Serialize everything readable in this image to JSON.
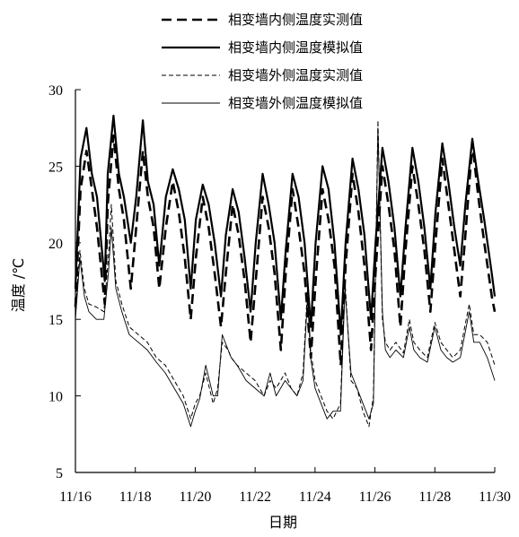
{
  "chart_data": {
    "type": "line",
    "xlabel": "日期",
    "ylabel": "温度 /℃",
    "xlim": [
      0,
      14
    ],
    "ylim": [
      5,
      30
    ],
    "x_ticks": [
      0,
      2,
      4,
      6,
      8,
      10,
      12,
      14
    ],
    "x_tick_labels": [
      "11/16",
      "11/18",
      "11/20",
      "11/22",
      "11/24",
      "11/26",
      "11/28",
      "11/30"
    ],
    "y_ticks": [
      5,
      10,
      15,
      20,
      25,
      30
    ],
    "y_tick_labels": [
      "5",
      "10",
      "15",
      "20",
      "25",
      "30"
    ],
    "grid": false,
    "legend_position": "top",
    "series": [
      {
        "name": "相变墙内侧温度实测值",
        "style": "dashed-thick",
        "x": [
          0,
          0.17,
          0.37,
          0.55,
          0.72,
          0.98,
          1.08,
          1.27,
          1.45,
          1.62,
          1.85,
          2.03,
          2.25,
          2.42,
          2.61,
          2.8,
          3.02,
          3.25,
          3.45,
          3.65,
          3.85,
          4.02,
          4.25,
          4.45,
          4.65,
          4.86,
          5.02,
          5.25,
          5.45,
          5.65,
          5.85,
          6.02,
          6.25,
          6.45,
          6.65,
          6.86,
          7.02,
          7.25,
          7.45,
          7.65,
          7.86,
          8.02,
          8.25,
          8.45,
          8.65,
          8.86,
          9.02,
          9.25,
          9.45,
          9.65,
          9.87,
          10.02,
          10.25,
          10.45,
          10.65,
          10.85,
          11.02,
          11.25,
          11.45,
          11.65,
          11.85,
          12.02,
          12.25,
          12.45,
          12.65,
          12.85,
          13.02,
          13.25,
          13.45,
          13.65,
          13.9,
          14
        ],
        "y": [
          15.8,
          23.5,
          26.0,
          23.5,
          21.0,
          16.0,
          22.5,
          27.0,
          23.5,
          21.5,
          17.0,
          21.0,
          26.0,
          23.0,
          21.0,
          17.0,
          21.0,
          24.0,
          22.0,
          19.0,
          15.0,
          19.0,
          23.0,
          21.0,
          18.0,
          14.5,
          18.0,
          22.5,
          20.5,
          17.5,
          13.5,
          17.5,
          23.0,
          21.0,
          18.0,
          13.0,
          18.0,
          23.5,
          21.0,
          18.0,
          12.5,
          17.5,
          23.5,
          21.5,
          18.5,
          12.0,
          18.5,
          24.5,
          22.0,
          18.5,
          13.0,
          18.0,
          25.0,
          22.5,
          19.5,
          14.5,
          19.5,
          25.0,
          22.5,
          19.5,
          15.5,
          20.0,
          25.5,
          22.5,
          19.5,
          16.5,
          20.5,
          26.5,
          23.0,
          20.0,
          16.5,
          15.5
        ]
      },
      {
        "name": "相变墙内侧温度模拟值",
        "style": "solid-thick",
        "x": [
          0,
          0.17,
          0.37,
          0.55,
          0.72,
          0.98,
          1.08,
          1.27,
          1.45,
          1.62,
          1.85,
          2.03,
          2.25,
          2.42,
          2.61,
          2.8,
          3.02,
          3.25,
          3.45,
          3.65,
          3.85,
          4.02,
          4.25,
          4.45,
          4.65,
          4.86,
          5.02,
          5.25,
          5.45,
          5.65,
          5.85,
          6.02,
          6.25,
          6.45,
          6.65,
          6.86,
          7.02,
          7.25,
          7.45,
          7.65,
          7.86,
          8.02,
          8.25,
          8.45,
          8.65,
          8.86,
          9.02,
          9.25,
          9.45,
          9.65,
          9.87,
          10.02,
          10.25,
          10.45,
          10.65,
          10.85,
          11.02,
          11.25,
          11.45,
          11.65,
          11.85,
          12.02,
          12.25,
          12.45,
          12.65,
          12.85,
          13.02,
          13.25,
          13.45,
          13.65,
          13.9,
          14
        ],
        "y": [
          17.0,
          25.5,
          27.5,
          24.5,
          23.0,
          17.5,
          24.5,
          28.3,
          24.5,
          23.0,
          20.0,
          23.0,
          28.0,
          24.0,
          22.5,
          18.5,
          23.0,
          24.8,
          23.5,
          21.5,
          17.0,
          21.5,
          23.8,
          22.5,
          20.0,
          16.5,
          20.5,
          23.5,
          22.0,
          19.0,
          15.5,
          20.0,
          24.5,
          22.5,
          20.0,
          15.0,
          19.5,
          24.5,
          23.0,
          20.0,
          14.5,
          20.0,
          25.0,
          23.5,
          20.0,
          14.0,
          20.0,
          25.5,
          23.5,
          20.5,
          15.0,
          20.0,
          26.2,
          24.0,
          21.0,
          16.5,
          21.0,
          26.2,
          24.0,
          21.0,
          17.0,
          22.0,
          26.5,
          24.0,
          21.0,
          18.5,
          22.5,
          26.8,
          24.0,
          21.5,
          18.0,
          16.5
        ]
      },
      {
        "name": "相变墙外侧温度实测值",
        "style": "dashed-thin",
        "x": [
          0,
          0.15,
          0.3,
          0.45,
          0.7,
          0.95,
          1.1,
          1.2,
          1.35,
          1.55,
          1.8,
          2.1,
          2.4,
          2.7,
          3.0,
          3.3,
          3.6,
          3.85,
          4.0,
          4.15,
          4.35,
          4.6,
          4.75,
          4.9,
          5.1,
          5.2,
          5.4,
          5.7,
          6.0,
          6.3,
          6.5,
          6.7,
          7.0,
          7.2,
          7.4,
          7.6,
          7.75,
          7.85,
          8.0,
          8.2,
          8.4,
          8.6,
          8.85,
          9.0,
          9.2,
          9.4,
          9.6,
          9.8,
          9.95,
          10.1,
          10.25,
          10.35,
          10.5,
          10.7,
          10.95,
          11.15,
          11.3,
          11.5,
          11.75,
          12.0,
          12.2,
          12.4,
          12.6,
          12.85,
          13.15,
          13.3,
          13.5,
          13.75,
          14
        ],
        "y": [
          15.5,
          19.5,
          17.0,
          16.0,
          15.8,
          15.5,
          19.0,
          22.5,
          17.5,
          16.0,
          14.5,
          14.0,
          13.5,
          12.5,
          12.0,
          11.0,
          10.0,
          8.5,
          9.5,
          10.0,
          11.5,
          9.5,
          10.5,
          13.5,
          13.0,
          12.5,
          12.0,
          11.5,
          11.0,
          10.0,
          11.0,
          10.5,
          11.5,
          10.5,
          10.0,
          11.5,
          17.0,
          13.0,
          11.0,
          10.0,
          9.0,
          8.5,
          9.5,
          17.5,
          11.0,
          10.5,
          9.0,
          8.0,
          10.0,
          28.0,
          15.0,
          13.5,
          13.0,
          13.5,
          12.8,
          15.0,
          13.5,
          13.0,
          12.5,
          14.8,
          13.5,
          13.0,
          12.5,
          13.0,
          16.0,
          14.0,
          14.0,
          13.5,
          12.0
        ]
      },
      {
        "name": "相变墙外侧温度模拟值",
        "style": "solid-thin",
        "x": [
          0,
          0.15,
          0.3,
          0.45,
          0.7,
          0.95,
          1.1,
          1.2,
          1.35,
          1.55,
          1.8,
          2.1,
          2.4,
          2.7,
          3.0,
          3.3,
          3.6,
          3.85,
          4.0,
          4.15,
          4.35,
          4.6,
          4.75,
          4.9,
          5.1,
          5.2,
          5.4,
          5.7,
          6.0,
          6.3,
          6.5,
          6.7,
          7.0,
          7.2,
          7.4,
          7.6,
          7.75,
          7.85,
          8.0,
          8.2,
          8.4,
          8.6,
          8.85,
          9.0,
          9.2,
          9.4,
          9.6,
          9.8,
          9.95,
          10.1,
          10.25,
          10.35,
          10.5,
          10.7,
          10.95,
          11.15,
          11.3,
          11.5,
          11.75,
          12.0,
          12.2,
          12.4,
          12.6,
          12.85,
          13.15,
          13.3,
          13.5,
          13.75,
          14
        ],
        "y": [
          15.0,
          19.0,
          16.5,
          15.5,
          15.0,
          15.0,
          18.0,
          21.0,
          17.0,
          15.5,
          14.0,
          13.5,
          13.0,
          12.2,
          11.5,
          10.5,
          9.5,
          8.0,
          9.0,
          9.8,
          12.0,
          10.0,
          10.0,
          14.0,
          13.0,
          12.5,
          12.0,
          11.0,
          10.5,
          10.0,
          11.5,
          10.0,
          11.0,
          10.5,
          10.0,
          11.0,
          16.5,
          12.5,
          10.5,
          9.5,
          8.5,
          9.0,
          9.0,
          17.0,
          11.5,
          10.5,
          9.5,
          8.5,
          9.5,
          27.5,
          15.5,
          13.0,
          12.5,
          13.0,
          12.5,
          14.5,
          13.0,
          12.5,
          12.2,
          14.5,
          13.0,
          12.5,
          12.2,
          12.5,
          15.5,
          13.5,
          13.5,
          12.5,
          11.0
        ]
      }
    ]
  }
}
